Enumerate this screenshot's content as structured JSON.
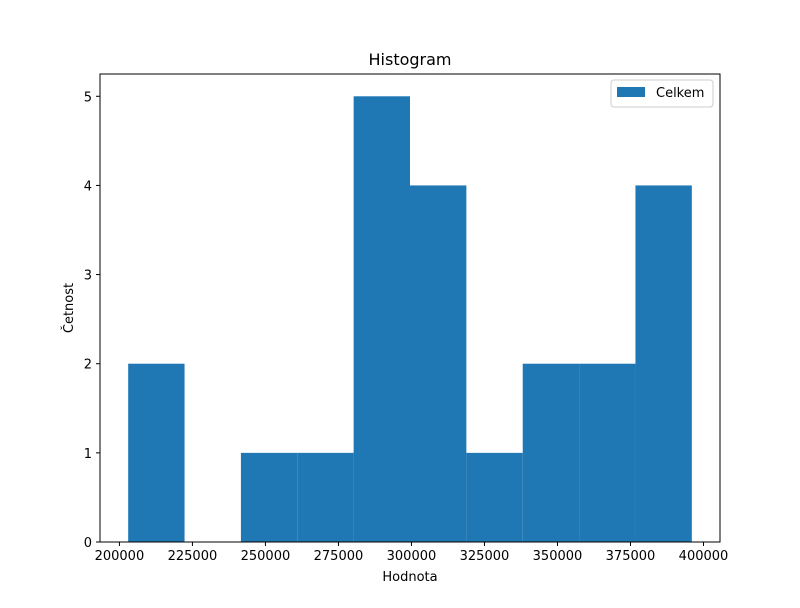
{
  "chart_data": {
    "type": "bar",
    "title": "Histogram",
    "xlabel": "Hodnota",
    "ylabel": "Četnost",
    "bin_edges": [
      203000,
      222300,
      241600,
      260900,
      280200,
      299500,
      318800,
      338100,
      357400,
      376700,
      396000
    ],
    "counts": [
      2,
      0,
      1,
      1,
      5,
      4,
      1,
      2,
      2,
      4
    ],
    "series": [
      {
        "name": "Celkem",
        "color": "#1f77b4"
      }
    ],
    "xlim": [
      193350,
      405650
    ],
    "ylim": [
      0,
      5.25
    ],
    "xticks": [
      200000,
      225000,
      250000,
      275000,
      300000,
      325000,
      350000,
      375000,
      400000
    ],
    "xtick_labels": [
      "200000",
      "225000",
      "250000",
      "275000",
      "300000",
      "325000",
      "350000",
      "375000",
      "400000"
    ],
    "yticks": [
      0,
      1,
      2,
      3,
      4,
      5
    ],
    "ytick_labels": [
      "0",
      "1",
      "2",
      "3",
      "4",
      "5"
    ],
    "legend_position": "top-right",
    "grid": false
  }
}
